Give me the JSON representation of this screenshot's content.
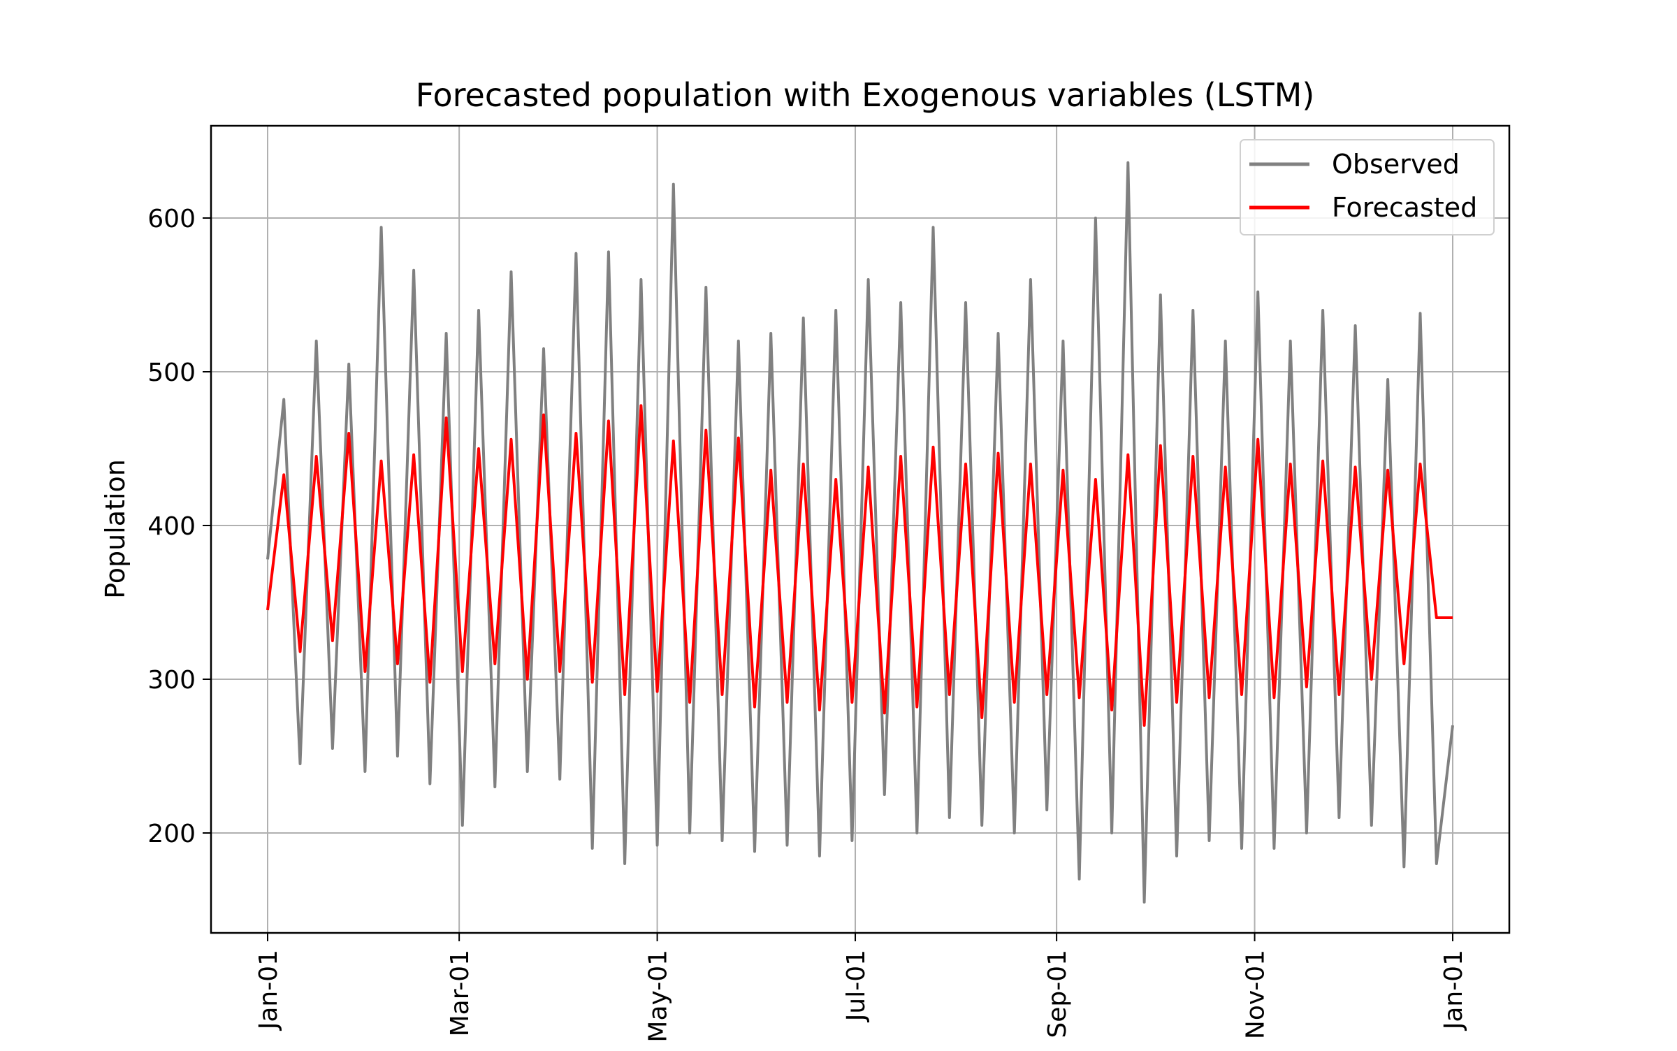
{
  "chart_data": {
    "type": "line",
    "title": "Forecasted population with Exogenous variables (LSTM)",
    "xlabel": "",
    "ylabel": "Population",
    "x_range": [
      "2021-01-01",
      "2022-01-01"
    ],
    "ylim": [
      135,
      660
    ],
    "y_ticks": [
      200,
      300,
      400,
      500,
      600
    ],
    "x_ticks": [
      {
        "date": "2021-01-01",
        "label": "Jan-01"
      },
      {
        "date": "2021-03-01",
        "label": "Mar-01"
      },
      {
        "date": "2021-05-01",
        "label": "May-01"
      },
      {
        "date": "2021-07-01",
        "label": "Jul-01"
      },
      {
        "date": "2021-09-01",
        "label": "Sep-01"
      },
      {
        "date": "2021-11-01",
        "label": "Nov-01"
      },
      {
        "date": "2022-01-01",
        "label": "Jan-01"
      }
    ],
    "grid": true,
    "legend_position": "top-right",
    "series": [
      {
        "name": "Observed",
        "color": "#808080",
        "x": [
          "2021-01-01",
          "2021-01-06",
          "2021-01-11",
          "2021-01-16",
          "2021-01-21",
          "2021-01-26",
          "2021-01-31",
          "2021-02-05",
          "2021-02-10",
          "2021-02-15",
          "2021-02-20",
          "2021-02-25",
          "2021-03-02",
          "2021-03-07",
          "2021-03-12",
          "2021-03-17",
          "2021-03-22",
          "2021-03-27",
          "2021-04-01",
          "2021-04-06",
          "2021-04-11",
          "2021-04-16",
          "2021-04-21",
          "2021-04-26",
          "2021-05-01",
          "2021-05-06",
          "2021-05-11",
          "2021-05-16",
          "2021-05-21",
          "2021-05-26",
          "2021-05-31",
          "2021-06-05",
          "2021-06-10",
          "2021-06-15",
          "2021-06-20",
          "2021-06-25",
          "2021-06-30",
          "2021-07-05",
          "2021-07-10",
          "2021-07-15",
          "2021-07-20",
          "2021-07-25",
          "2021-07-30",
          "2021-08-04",
          "2021-08-09",
          "2021-08-14",
          "2021-08-19",
          "2021-08-24",
          "2021-08-29",
          "2021-09-03",
          "2021-09-08",
          "2021-09-13",
          "2021-09-18",
          "2021-09-23",
          "2021-09-28",
          "2021-10-03",
          "2021-10-08",
          "2021-10-13",
          "2021-10-18",
          "2021-10-23",
          "2021-10-28",
          "2021-11-02",
          "2021-11-07",
          "2021-11-12",
          "2021-11-17",
          "2021-11-22",
          "2021-11-27",
          "2021-12-02",
          "2021-12-07",
          "2021-12-12",
          "2021-12-17",
          "2021-12-22",
          "2021-12-27",
          "2022-01-01"
        ],
        "values": [
          378,
          482,
          245,
          520,
          255,
          505,
          240,
          594,
          250,
          566,
          232,
          525,
          205,
          540,
          230,
          565,
          240,
          515,
          235,
          577,
          190,
          578,
          180,
          560,
          192,
          622,
          200,
          555,
          195,
          520,
          188,
          525,
          192,
          535,
          185,
          540,
          195,
          560,
          225,
          545,
          200,
          594,
          210,
          545,
          205,
          525,
          200,
          560,
          215,
          520,
          170,
          600,
          200,
          636,
          155,
          550,
          185,
          540,
          195,
          520,
          190,
          552,
          190,
          520,
          200,
          540,
          210,
          530,
          205,
          495,
          178,
          538,
          180,
          270
        ]
      },
      {
        "name": "Forecasted",
        "color": "#ff0000",
        "x": [
          "2021-01-01",
          "2021-01-06",
          "2021-01-11",
          "2021-01-16",
          "2021-01-21",
          "2021-01-26",
          "2021-01-31",
          "2021-02-05",
          "2021-02-10",
          "2021-02-15",
          "2021-02-20",
          "2021-02-25",
          "2021-03-02",
          "2021-03-07",
          "2021-03-12",
          "2021-03-17",
          "2021-03-22",
          "2021-03-27",
          "2021-04-01",
          "2021-04-06",
          "2021-04-11",
          "2021-04-16",
          "2021-04-21",
          "2021-04-26",
          "2021-05-01",
          "2021-05-06",
          "2021-05-11",
          "2021-05-16",
          "2021-05-21",
          "2021-05-26",
          "2021-05-31",
          "2021-06-05",
          "2021-06-10",
          "2021-06-15",
          "2021-06-20",
          "2021-06-25",
          "2021-06-30",
          "2021-07-05",
          "2021-07-10",
          "2021-07-15",
          "2021-07-20",
          "2021-07-25",
          "2021-07-30",
          "2021-08-04",
          "2021-08-09",
          "2021-08-14",
          "2021-08-19",
          "2021-08-24",
          "2021-08-29",
          "2021-09-03",
          "2021-09-08",
          "2021-09-13",
          "2021-09-18",
          "2021-09-23",
          "2021-09-28",
          "2021-10-03",
          "2021-10-08",
          "2021-10-13",
          "2021-10-18",
          "2021-10-23",
          "2021-10-28",
          "2021-11-02",
          "2021-11-07",
          "2021-11-12",
          "2021-11-17",
          "2021-11-22",
          "2021-11-27",
          "2021-12-02",
          "2021-12-07",
          "2021-12-12",
          "2021-12-17",
          "2021-12-22",
          "2021-12-27",
          "2022-01-01"
        ],
        "values": [
          345,
          433,
          318,
          445,
          325,
          460,
          305,
          442,
          310,
          446,
          298,
          470,
          305,
          450,
          310,
          456,
          300,
          472,
          305,
          460,
          298,
          468,
          290,
          478,
          292,
          455,
          285,
          462,
          290,
          457,
          282,
          436,
          285,
          440,
          280,
          430,
          285,
          438,
          278,
          445,
          282,
          451,
          290,
          440,
          275,
          447,
          285,
          440,
          290,
          436,
          288,
          430,
          280,
          446,
          270,
          452,
          285,
          445,
          288,
          438,
          290,
          456,
          288,
          440,
          295,
          442,
          290,
          438,
          300,
          436,
          310,
          440,
          340,
          340
        ]
      }
    ]
  }
}
